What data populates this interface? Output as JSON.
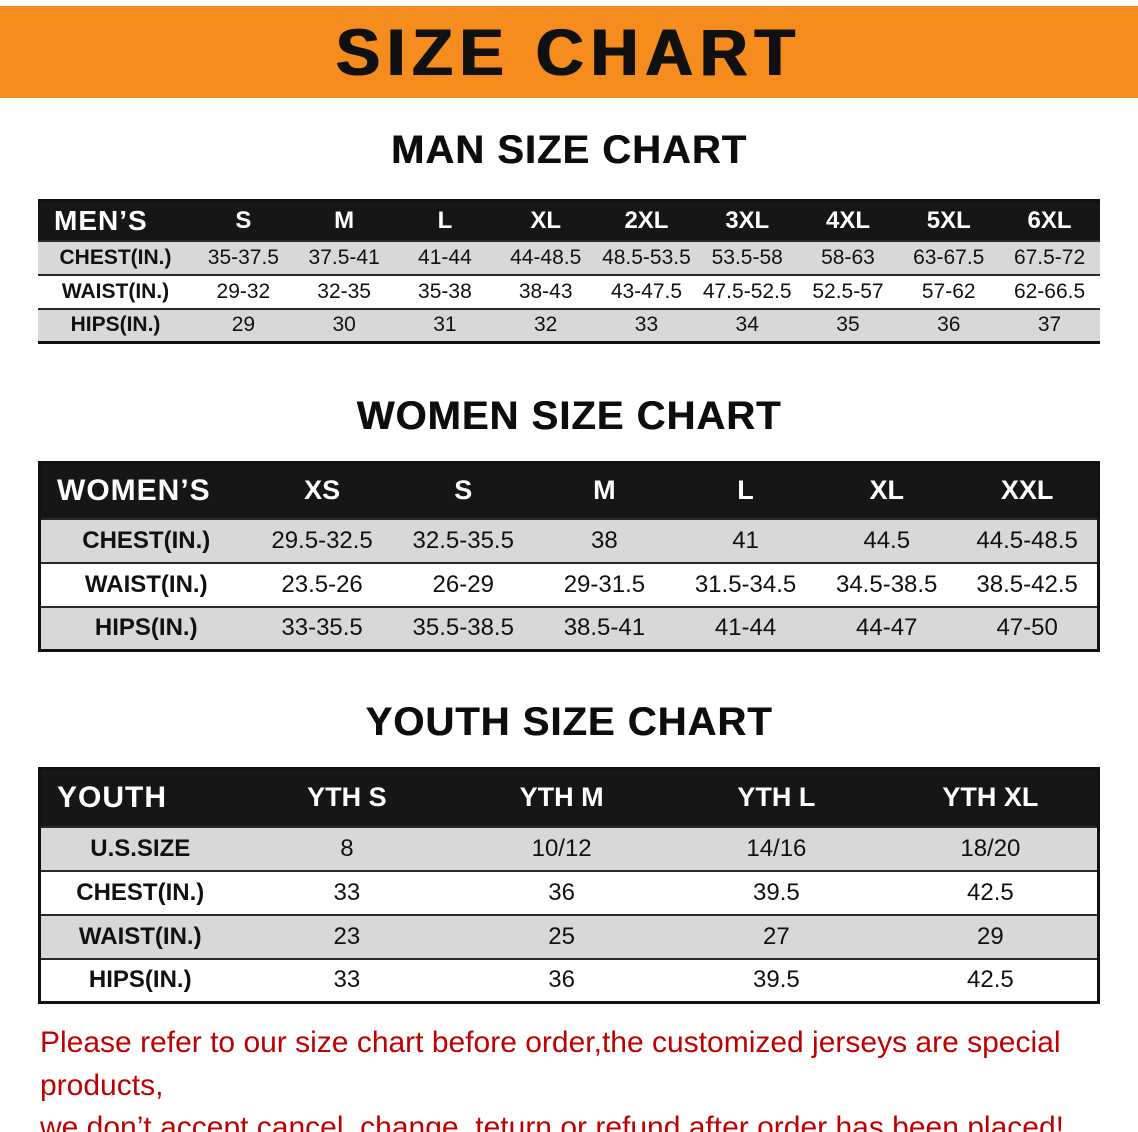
{
  "banner": {
    "title": "SIZE CHART",
    "bg_color": "#F78C1E"
  },
  "sections": [
    {
      "id": "men",
      "title": "MAN SIZE CHART",
      "header_label": "MEN’S",
      "columns": [
        "S",
        "M",
        "L",
        "XL",
        "2XL",
        "3XL",
        "4XL",
        "5XL",
        "6XL"
      ],
      "rows": [
        {
          "label": "CHEST(IN.)",
          "values": [
            "35-37.5",
            "37.5-41",
            "41-44",
            "44-48.5",
            "48.5-53.5",
            "53.5-58",
            "58-63",
            "63-67.5",
            "67.5-72"
          ]
        },
        {
          "label": "WAIST(IN.)",
          "values": [
            "29-32",
            "32-35",
            "35-38",
            "38-43",
            "43-47.5",
            "47.5-52.5",
            "52.5-57",
            "57-62",
            "62-66.5"
          ]
        },
        {
          "label": "HIPS(IN.)",
          "values": [
            "29",
            "30",
            "31",
            "32",
            "33",
            "34",
            "35",
            "36",
            "37"
          ]
        }
      ]
    },
    {
      "id": "women",
      "title": "WOMEN SIZE CHART",
      "header_label": "WOMEN’S",
      "columns": [
        "XS",
        "S",
        "M",
        "L",
        "XL",
        "XXL"
      ],
      "rows": [
        {
          "label": "CHEST(IN.)",
          "values": [
            "29.5-32.5",
            "32.5-35.5",
            "38",
            "41",
            "44.5",
            "44.5-48.5"
          ]
        },
        {
          "label": "WAIST(IN.)",
          "values": [
            "23.5-26",
            "26-29",
            "29-31.5",
            "31.5-34.5",
            "34.5-38.5",
            "38.5-42.5"
          ]
        },
        {
          "label": "HIPS(IN.)",
          "values": [
            "33-35.5",
            "35.5-38.5",
            "38.5-41",
            "41-44",
            "44-47",
            "47-50"
          ]
        }
      ]
    },
    {
      "id": "youth",
      "title": "YOUTH SIZE CHART",
      "header_label": "YOUTH",
      "columns": [
        "YTH S",
        "YTH M",
        "YTH L",
        "YTH XL"
      ],
      "rows": [
        {
          "label": "U.S.SIZE",
          "values": [
            "8",
            "10/12",
            "14/16",
            "18/20"
          ]
        },
        {
          "label": "CHEST(IN.)",
          "values": [
            "33",
            "36",
            "39.5",
            "42.5"
          ]
        },
        {
          "label": "WAIST(IN.)",
          "values": [
            "23",
            "25",
            "27",
            "29"
          ]
        },
        {
          "label": "HIPS(IN.)",
          "values": [
            "33",
            "36",
            "39.5",
            "42.5"
          ]
        }
      ]
    }
  ],
  "footer": {
    "line1": "Please refer to our size chart before order,the customized jerseys are special products,",
    "line2": "we don’t accept cancel, change, teturn or refund after order has been placed!",
    "text_color": "#c00000"
  }
}
